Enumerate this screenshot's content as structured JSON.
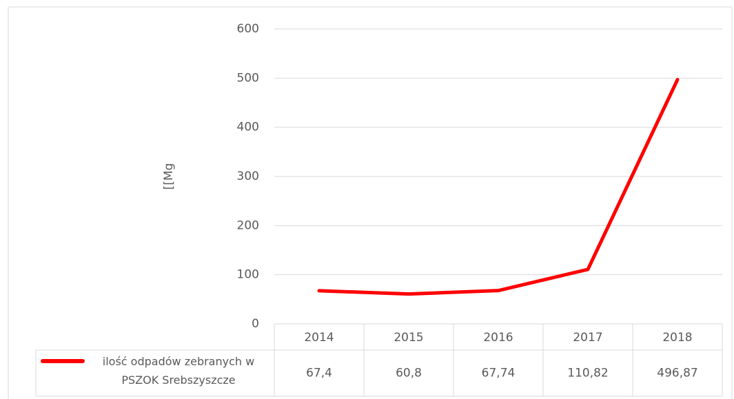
{
  "chart_data": {
    "type": "line",
    "y_axis_label": "[[Mg",
    "categories": [
      "2014",
      "2015",
      "2016",
      "2017",
      "2018"
    ],
    "series": [
      {
        "name": "ilość odpadów zebranych w PSZOK Srebszyszcze",
        "color": "#ff0000",
        "values": [
          67.4,
          60.8,
          67.74,
          110.82,
          496.87
        ],
        "value_labels": [
          "67,4",
          "60,8",
          "67,74",
          "110,82",
          "496,87"
        ]
      }
    ],
    "ylim": [
      0,
      600
    ],
    "yticks": [
      0,
      100,
      200,
      300,
      400,
      500,
      600
    ],
    "grid": true
  }
}
